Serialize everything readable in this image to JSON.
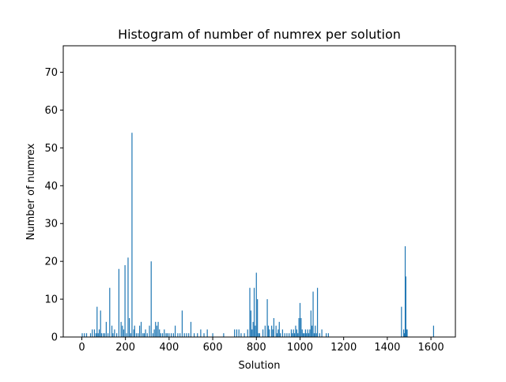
{
  "chart_data": {
    "type": "bar",
    "title": "Histogram of number of numrex per solution",
    "xlabel": "Solution",
    "ylabel": "Number of numrex",
    "xlim": [
      -85,
      1712
    ],
    "ylim": [
      0,
      77
    ],
    "xticks": [
      0,
      200,
      400,
      600,
      800,
      1000,
      1200,
      1400,
      1600
    ],
    "yticks": [
      0,
      10,
      20,
      30,
      40,
      50,
      60,
      70
    ],
    "grid": false,
    "bar_color": "#1f77b4",
    "x": [
      2,
      12,
      22,
      40,
      48,
      58,
      65,
      70,
      75,
      80,
      86,
      90,
      98,
      105,
      112,
      120,
      128,
      138,
      143,
      150,
      160,
      170,
      180,
      186,
      192,
      198,
      205,
      212,
      218,
      224,
      230,
      238,
      242,
      250,
      258,
      265,
      272,
      280,
      286,
      292,
      300,
      310,
      318,
      326,
      332,
      338,
      344,
      350,
      356,
      362,
      370,
      378,
      386,
      392,
      400,
      410,
      420,
      428,
      440,
      450,
      460,
      470,
      480,
      490,
      500,
      515,
      530,
      545,
      560,
      575,
      600,
      650,
      700,
      710,
      720,
      730,
      745,
      760,
      770,
      775,
      780,
      785,
      790,
      795,
      800,
      805,
      810,
      815,
      830,
      840,
      850,
      855,
      860,
      870,
      875,
      880,
      890,
      895,
      900,
      905,
      910,
      920,
      930,
      940,
      950,
      960,
      965,
      970,
      975,
      980,
      985,
      990,
      995,
      1000,
      1005,
      1010,
      1015,
      1020,
      1025,
      1030,
      1035,
      1040,
      1045,
      1050,
      1055,
      1060,
      1065,
      1070,
      1075,
      1080,
      1090,
      1100,
      1120,
      1130,
      1465,
      1475,
      1478,
      1482,
      1485,
      1488,
      1491,
      1612
    ],
    "values": [
      1,
      1,
      1,
      1,
      2,
      2,
      1,
      8,
      1,
      2,
      7,
      1,
      1,
      1,
      4,
      1,
      13,
      3,
      1,
      2,
      1,
      18,
      4,
      3,
      2,
      19,
      1,
      21,
      5,
      1,
      54,
      2,
      3,
      1,
      1,
      3,
      4,
      1,
      1,
      2,
      1,
      3,
      20,
      1,
      2,
      4,
      3,
      4,
      2,
      1,
      1,
      2,
      1,
      1,
      1,
      1,
      1,
      3,
      1,
      1,
      7,
      1,
      1,
      1,
      4,
      1,
      1,
      2,
      1,
      2,
      1,
      1,
      2,
      2,
      2,
      1,
      1,
      2,
      13,
      7,
      2,
      4,
      13,
      3,
      17,
      10,
      1,
      1,
      2,
      3,
      10,
      3,
      2,
      3,
      2,
      5,
      3,
      1,
      2,
      4,
      1,
      2,
      1,
      1,
      1,
      2,
      1,
      2,
      1,
      3,
      2,
      1,
      5,
      9,
      5,
      2,
      1,
      1,
      2,
      1,
      2,
      1,
      2,
      7,
      3,
      12,
      1,
      3,
      1,
      13,
      1,
      2,
      1,
      1,
      8,
      2,
      1,
      24,
      16,
      2,
      2,
      3
    ]
  }
}
